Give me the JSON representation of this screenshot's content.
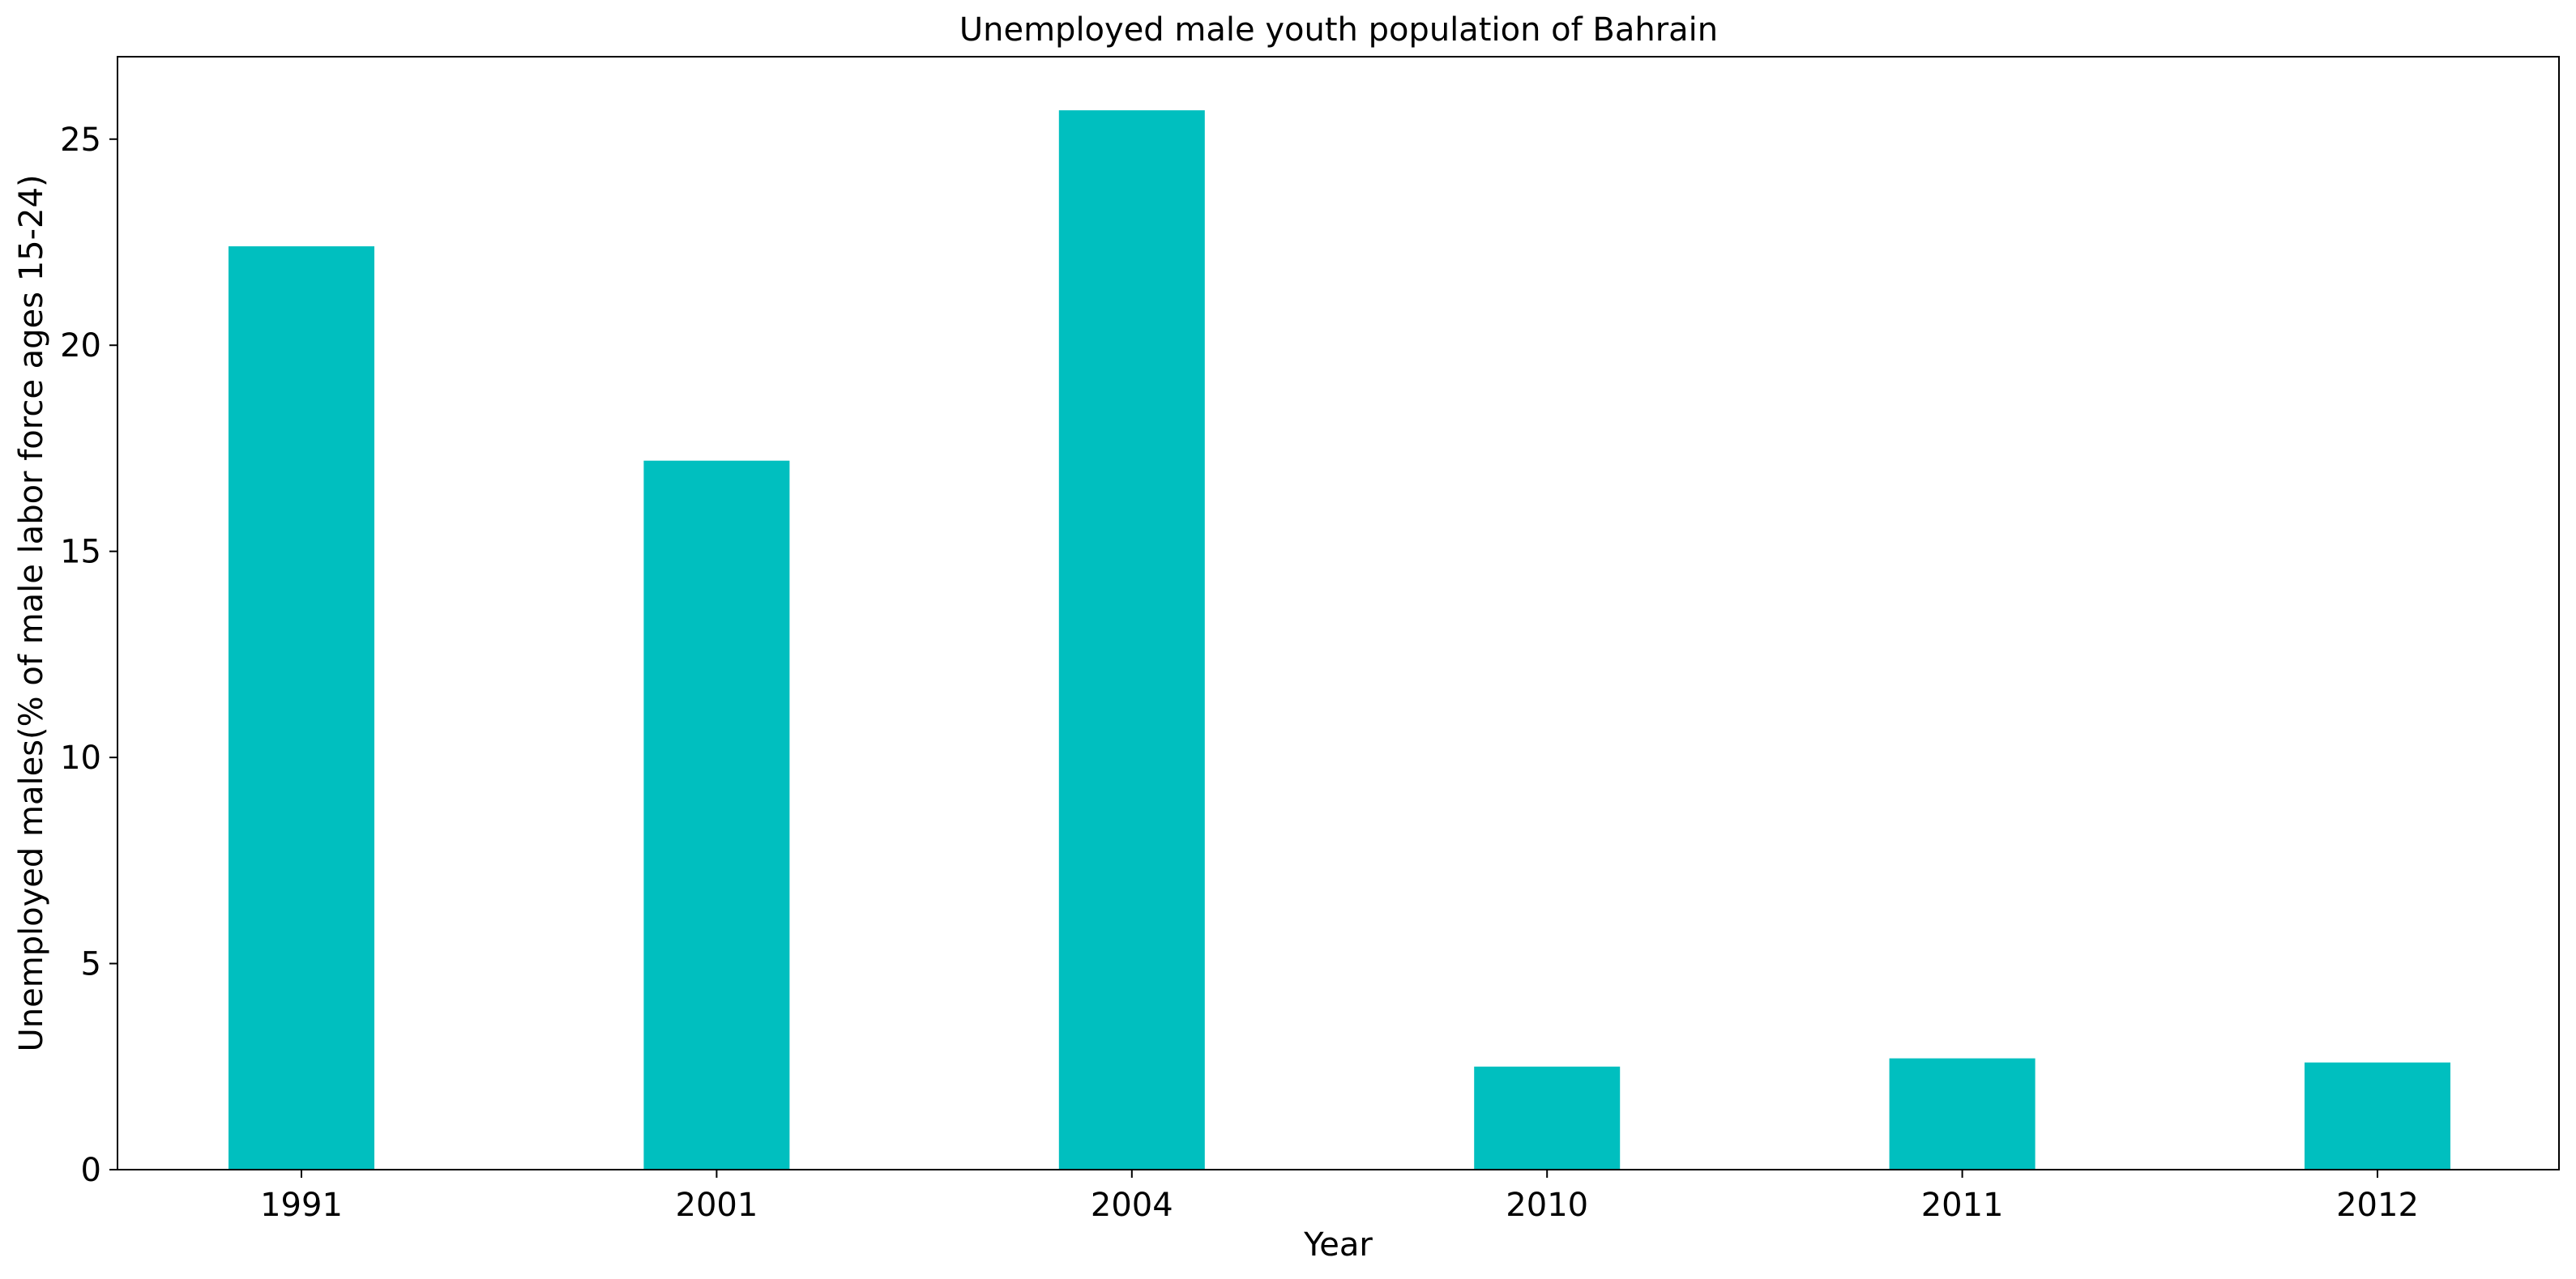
{
  "chart_data": {
    "type": "bar",
    "title": "Unemployed male youth population of Bahrain",
    "xlabel": "Year",
    "ylabel": "Unemployed males(% of male labor force ages 15-24)",
    "categories": [
      "1991",
      "2001",
      "2004",
      "2010",
      "2011",
      "2012"
    ],
    "values": [
      22.4,
      17.2,
      25.7,
      2.5,
      2.7,
      2.6
    ],
    "ylim": [
      0,
      27
    ],
    "yticks": [
      0,
      5,
      10,
      15,
      20,
      25
    ],
    "grid": false,
    "legend": "none",
    "bar_color": "#00bfbf"
  }
}
